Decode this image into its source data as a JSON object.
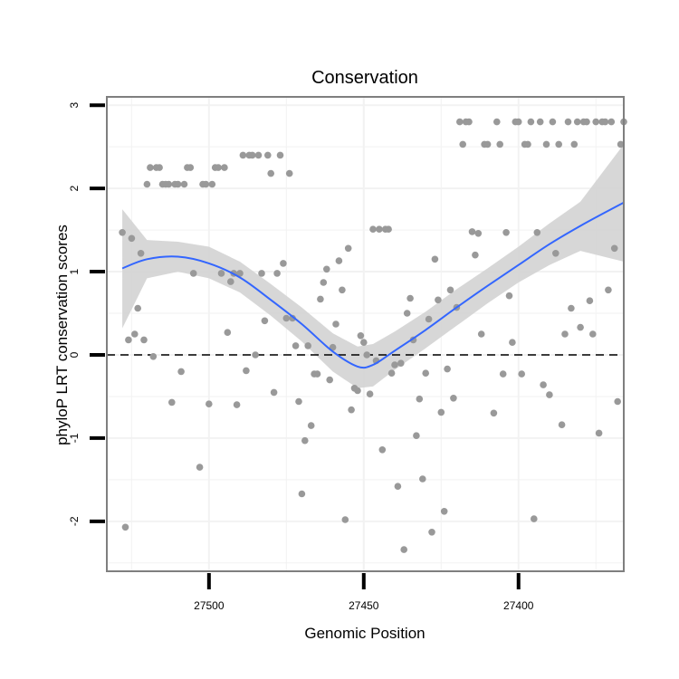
{
  "chart_data": {
    "type": "scatter",
    "title": "Conservation",
    "xlabel": "Genomic Position",
    "ylabel": "phyloP LRT conservation scores",
    "x_reversed": true,
    "xlim": [
      27533,
      27366
    ],
    "ylim": [
      -2.6,
      3.1
    ],
    "x_ticks": [
      27500,
      27450,
      27400
    ],
    "y_ticks": [
      -2,
      -1,
      0,
      1,
      2,
      3
    ],
    "grid": true,
    "reference_line": {
      "y": 0,
      "style": "dashed"
    },
    "colors": {
      "points": "#999999",
      "smooth": "#3366FF",
      "band": "#D3D3D3",
      "panel_border": "#7F7F7F",
      "grid": "#F2F2F2"
    },
    "points": [
      {
        "x": 27528,
        "y": 1.47
      },
      {
        "x": 27527,
        "y": -2.07
      },
      {
        "x": 27526,
        "y": 0.18
      },
      {
        "x": 27525,
        "y": 1.4
      },
      {
        "x": 27524,
        "y": 0.25
      },
      {
        "x": 27523,
        "y": 0.56
      },
      {
        "x": 27522,
        "y": 1.22
      },
      {
        "x": 27521,
        "y": 0.18
      },
      {
        "x": 27520,
        "y": 2.05
      },
      {
        "x": 27519,
        "y": 2.25
      },
      {
        "x": 27518,
        "y": -0.02
      },
      {
        "x": 27517,
        "y": 2.25
      },
      {
        "x": 27516,
        "y": 2.25
      },
      {
        "x": 27515,
        "y": 2.05
      },
      {
        "x": 27514,
        "y": 2.05
      },
      {
        "x": 27513,
        "y": 2.05
      },
      {
        "x": 27512,
        "y": -0.57
      },
      {
        "x": 27511,
        "y": 2.05
      },
      {
        "x": 27510,
        "y": 2.05
      },
      {
        "x": 27509,
        "y": -0.2
      },
      {
        "x": 27508,
        "y": 2.05
      },
      {
        "x": 27507,
        "y": 2.25
      },
      {
        "x": 27506,
        "y": 2.25
      },
      {
        "x": 27505,
        "y": 0.98
      },
      {
        "x": 27503,
        "y": -1.35
      },
      {
        "x": 27502,
        "y": 2.05
      },
      {
        "x": 27501,
        "y": 2.05
      },
      {
        "x": 27500,
        "y": -0.59
      },
      {
        "x": 27499,
        "y": 2.05
      },
      {
        "x": 27498,
        "y": 2.25
      },
      {
        "x": 27497,
        "y": 2.25
      },
      {
        "x": 27496,
        "y": 0.98
      },
      {
        "x": 27495,
        "y": 2.25
      },
      {
        "x": 27494,
        "y": 0.27
      },
      {
        "x": 27493,
        "y": 0.88
      },
      {
        "x": 27492,
        "y": 0.98
      },
      {
        "x": 27491,
        "y": -0.6
      },
      {
        "x": 27490,
        "y": 0.98
      },
      {
        "x": 27489,
        "y": 2.4
      },
      {
        "x": 27488,
        "y": -0.19
      },
      {
        "x": 27487,
        "y": 2.4
      },
      {
        "x": 27486,
        "y": 2.4
      },
      {
        "x": 27485,
        "y": 0.0
      },
      {
        "x": 27484,
        "y": 2.4
      },
      {
        "x": 27483,
        "y": 0.98
      },
      {
        "x": 27482,
        "y": 0.41
      },
      {
        "x": 27481,
        "y": 2.4
      },
      {
        "x": 27480,
        "y": 2.18
      },
      {
        "x": 27479,
        "y": -0.45
      },
      {
        "x": 27478,
        "y": 0.98
      },
      {
        "x": 27477,
        "y": 2.4
      },
      {
        "x": 27476,
        "y": 1.1
      },
      {
        "x": 27475,
        "y": 0.44
      },
      {
        "x": 27474,
        "y": 2.18
      },
      {
        "x": 27473,
        "y": 0.44
      },
      {
        "x": 27472,
        "y": 0.11
      },
      {
        "x": 27471,
        "y": -0.56
      },
      {
        "x": 27470,
        "y": -1.67
      },
      {
        "x": 27469,
        "y": -1.03
      },
      {
        "x": 27468,
        "y": 0.11
      },
      {
        "x": 27467,
        "y": -0.85
      },
      {
        "x": 27466,
        "y": -0.23
      },
      {
        "x": 27465,
        "y": -0.23
      },
      {
        "x": 27464,
        "y": 0.67
      },
      {
        "x": 27463,
        "y": 0.87
      },
      {
        "x": 27462,
        "y": 1.03
      },
      {
        "x": 27461,
        "y": -0.3
      },
      {
        "x": 27460,
        "y": 0.09
      },
      {
        "x": 27459,
        "y": 0.37
      },
      {
        "x": 27458,
        "y": 1.13
      },
      {
        "x": 27457,
        "y": 0.78
      },
      {
        "x": 27456,
        "y": -1.98
      },
      {
        "x": 27455,
        "y": 1.28
      },
      {
        "x": 27454,
        "y": -0.66
      },
      {
        "x": 27453,
        "y": -0.4
      },
      {
        "x": 27452,
        "y": -0.43
      },
      {
        "x": 27451,
        "y": 0.23
      },
      {
        "x": 27450,
        "y": 0.15
      },
      {
        "x": 27449,
        "y": 0.0
      },
      {
        "x": 27448,
        "y": -0.47
      },
      {
        "x": 27447,
        "y": 1.51
      },
      {
        "x": 27446,
        "y": -0.07
      },
      {
        "x": 27445,
        "y": 1.51
      },
      {
        "x": 27444,
        "y": -1.14
      },
      {
        "x": 27443,
        "y": 1.51
      },
      {
        "x": 27442,
        "y": 1.51
      },
      {
        "x": 27441,
        "y": -0.22
      },
      {
        "x": 27440,
        "y": -0.12
      },
      {
        "x": 27439,
        "y": -1.58
      },
      {
        "x": 27438,
        "y": -0.1
      },
      {
        "x": 27437,
        "y": -2.34
      },
      {
        "x": 27436,
        "y": 0.5
      },
      {
        "x": 27435,
        "y": 0.68
      },
      {
        "x": 27434,
        "y": 0.18
      },
      {
        "x": 27433,
        "y": -0.97
      },
      {
        "x": 27432,
        "y": -0.53
      },
      {
        "x": 27431,
        "y": -1.49
      },
      {
        "x": 27430,
        "y": -0.22
      },
      {
        "x": 27429,
        "y": 0.43
      },
      {
        "x": 27428,
        "y": -2.13
      },
      {
        "x": 27427,
        "y": 1.15
      },
      {
        "x": 27426,
        "y": 0.66
      },
      {
        "x": 27425,
        "y": -0.69
      },
      {
        "x": 27424,
        "y": -1.88
      },
      {
        "x": 27423,
        "y": -0.17
      },
      {
        "x": 27422,
        "y": 0.78
      },
      {
        "x": 27421,
        "y": -0.52
      },
      {
        "x": 27420,
        "y": 0.57
      },
      {
        "x": 27419,
        "y": 2.8
      },
      {
        "x": 27418,
        "y": 2.53
      },
      {
        "x": 27417,
        "y": 2.8
      },
      {
        "x": 27416,
        "y": 2.8
      },
      {
        "x": 27415,
        "y": 1.48
      },
      {
        "x": 27414,
        "y": 1.2
      },
      {
        "x": 27413,
        "y": 1.46
      },
      {
        "x": 27412,
        "y": 0.25
      },
      {
        "x": 27411,
        "y": 2.53
      },
      {
        "x": 27410,
        "y": 2.53
      },
      {
        "x": 27408,
        "y": -0.7
      },
      {
        "x": 27407,
        "y": 2.8
      },
      {
        "x": 27406,
        "y": 2.53
      },
      {
        "x": 27405,
        "y": -0.23
      },
      {
        "x": 27404,
        "y": 1.47
      },
      {
        "x": 27403,
        "y": 0.71
      },
      {
        "x": 27402,
        "y": 0.15
      },
      {
        "x": 27401,
        "y": 2.8
      },
      {
        "x": 27400,
        "y": 2.8
      },
      {
        "x": 27399,
        "y": -0.23
      },
      {
        "x": 27398,
        "y": 2.53
      },
      {
        "x": 27397,
        "y": 2.53
      },
      {
        "x": 27396,
        "y": 2.8
      },
      {
        "x": 27395,
        "y": -1.97
      },
      {
        "x": 27394,
        "y": 1.47
      },
      {
        "x": 27393,
        "y": 2.8
      },
      {
        "x": 27392,
        "y": -0.36
      },
      {
        "x": 27391,
        "y": 2.53
      },
      {
        "x": 27390,
        "y": -0.48
      },
      {
        "x": 27389,
        "y": 2.8
      },
      {
        "x": 27388,
        "y": 1.22
      },
      {
        "x": 27387,
        "y": 2.53
      },
      {
        "x": 27386,
        "y": -0.84
      },
      {
        "x": 27385,
        "y": 0.25
      },
      {
        "x": 27384,
        "y": 2.8
      },
      {
        "x": 27383,
        "y": 0.56
      },
      {
        "x": 27382,
        "y": 2.53
      },
      {
        "x": 27381,
        "y": 2.8
      },
      {
        "x": 27380,
        "y": 0.33
      },
      {
        "x": 27379,
        "y": 2.8
      },
      {
        "x": 27378,
        "y": 2.8
      },
      {
        "x": 27377,
        "y": 0.65
      },
      {
        "x": 27376,
        "y": 0.25
      },
      {
        "x": 27375,
        "y": 2.8
      },
      {
        "x": 27374,
        "y": -0.94
      },
      {
        "x": 27373,
        "y": 2.8
      },
      {
        "x": 27372,
        "y": 2.8
      },
      {
        "x": 27371,
        "y": 0.78
      },
      {
        "x": 27370,
        "y": 2.8
      },
      {
        "x": 27369,
        "y": 1.28
      },
      {
        "x": 27368,
        "y": -0.56
      },
      {
        "x": 27367,
        "y": 2.53
      },
      {
        "x": 27366,
        "y": 2.8
      }
    ],
    "smooth": {
      "x": [
        27528,
        27520,
        27510,
        27500,
        27490,
        27480,
        27470,
        27460,
        27452,
        27447,
        27440,
        27430,
        27420,
        27410,
        27400,
        27390,
        27380,
        27366
      ],
      "y": [
        1.04,
        1.15,
        1.18,
        1.1,
        0.93,
        0.66,
        0.37,
        0.04,
        -0.14,
        -0.12,
        0.05,
        0.3,
        0.57,
        0.83,
        1.08,
        1.33,
        1.55,
        1.83
      ],
      "lower": [
        0.32,
        0.92,
        1.0,
        0.92,
        0.75,
        0.47,
        0.16,
        -0.2,
        -0.4,
        -0.38,
        -0.18,
        0.08,
        0.35,
        0.62,
        0.87,
        1.08,
        1.25,
        1.12
      ],
      "upper": [
        1.75,
        1.38,
        1.36,
        1.3,
        1.12,
        0.85,
        0.57,
        0.26,
        0.1,
        0.13,
        0.28,
        0.52,
        0.79,
        1.04,
        1.3,
        1.58,
        1.84,
        2.53
      ]
    }
  }
}
